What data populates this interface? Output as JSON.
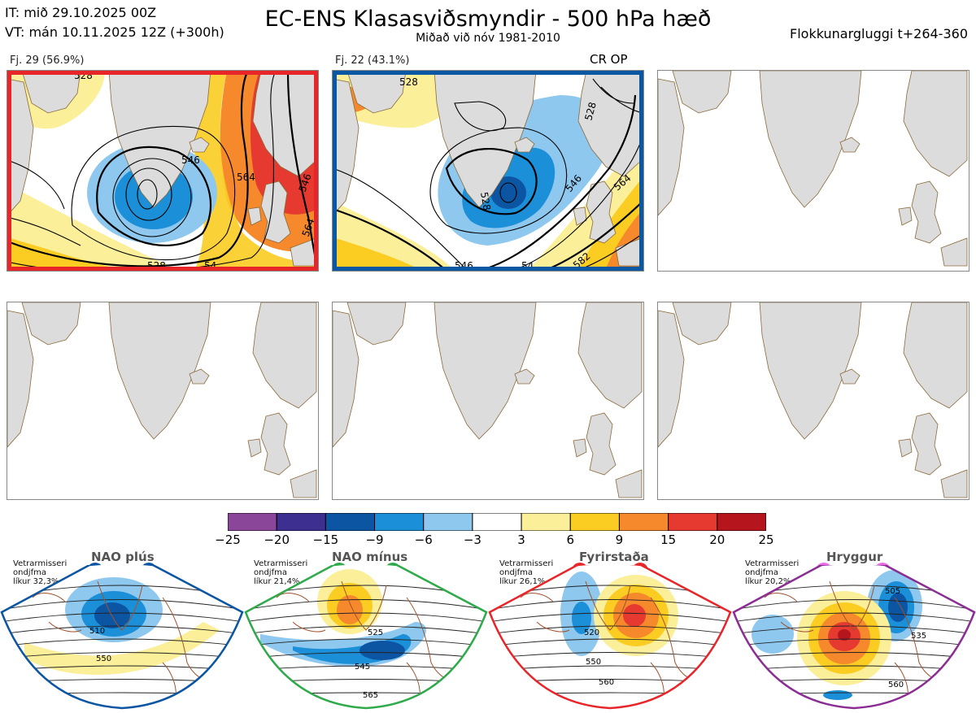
{
  "header": {
    "it_line": "IT: mið 29.10.2025 00Z",
    "vt_line": "VT: mán 10.11.2025 12Z  (+300h)",
    "title": "EC-ENS Klasasviðsmyndir - 500 hPa hæð",
    "subtitle": "Miðað við nóv 1981-2010",
    "window": "Flokkunargluggi t+264-360"
  },
  "clusters": [
    {
      "label": "Fj. 29 (56.9%)",
      "frame_color": "#e8262a",
      "contours": [
        "528",
        "546",
        "564",
        "546",
        "528",
        "54",
        "564"
      ]
    },
    {
      "label": "Fj. 22 (43.1%)",
      "frame_color": "#0a57a4",
      "tag": "CR OP",
      "contours": [
        "528",
        "528",
        "528",
        "546",
        "564",
        "546",
        "54",
        "582"
      ]
    }
  ],
  "colorbar": {
    "ticks": [
      "−25",
      "−20",
      "−15",
      "−9",
      "−6",
      "−3",
      "3",
      "6",
      "9",
      "15",
      "20",
      "25"
    ],
    "colors": [
      "#8a479a",
      "#3d2f8f",
      "#0c55a3",
      "#1c8fd9",
      "#8ec8ee",
      "#ffffff",
      "#fbef9a",
      "#fbcc22",
      "#f5892c",
      "#e63a30",
      "#b5161d"
    ]
  },
  "regimes": [
    {
      "name": "NAO plús",
      "season": "Vetrarmisseri",
      "sub": "ondjfma",
      "prob": "líkur 32,3%",
      "dot_color": "#0c55a3",
      "frame_color": "#0c55a3",
      "labels": [
        "510",
        "550"
      ]
    },
    {
      "name": "NAO mínus",
      "season": "Vetrarmisseri",
      "sub": "ondjfma",
      "prob": "líkur 21,4%",
      "dot_color": "#2eaa4a",
      "frame_color": "#2eaa4a",
      "labels": [
        "525",
        "545",
        "565"
      ]
    },
    {
      "name": "Fyrirstaða",
      "season": "Vetrarmisseri",
      "sub": "ondjfma",
      "prob": "líkur 26,1%",
      "dot_color": "#e8262a",
      "frame_color": "#e8262a",
      "labels": [
        "520",
        "550",
        "560"
      ]
    },
    {
      "name": "Hryggur",
      "season": "Vetrarmisseri",
      "sub": "ondjfma",
      "prob": "líkur 20,2%",
      "dot_color": "#ee6ae8",
      "frame_color": "#8b2e94",
      "labels": [
        "505",
        "535",
        "560"
      ]
    }
  ]
}
